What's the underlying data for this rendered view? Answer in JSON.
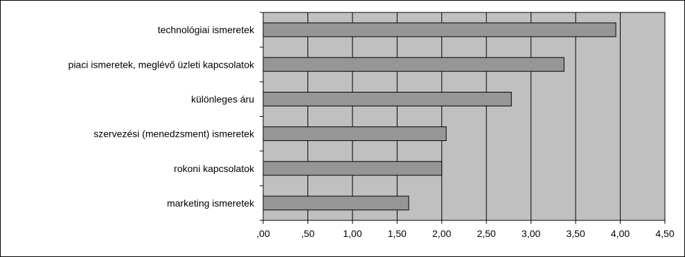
{
  "chart_data": {
    "type": "bar",
    "orientation": "horizontal",
    "categories": [
      "technológiai ismeretek",
      "piaci ismeretek, meglévő üzleti kapcsolatok",
      "különleges áru",
      "szervezési (menedzsment) ismeretek",
      "rokoni kapcsolatok",
      "marketing ismeretek"
    ],
    "values": [
      3.95,
      3.37,
      2.78,
      2.05,
      2.0,
      1.63
    ],
    "x_ticks": [
      ",00",
      ",50",
      "1,00",
      "1,50",
      "2,00",
      "2,50",
      "3,00",
      "3,50",
      "4,00",
      "4,50"
    ],
    "x_tick_values": [
      0,
      0.5,
      1.0,
      1.5,
      2.0,
      2.5,
      3.0,
      3.5,
      4.0,
      4.5
    ],
    "xlim": [
      0,
      4.5
    ],
    "grid": true,
    "legend": "none",
    "colors": {
      "plot_background": "#c0c0c0",
      "bar_fill": "#969696",
      "bar_stroke": "#000000",
      "grid": "#000000",
      "frame": "#000000"
    }
  }
}
